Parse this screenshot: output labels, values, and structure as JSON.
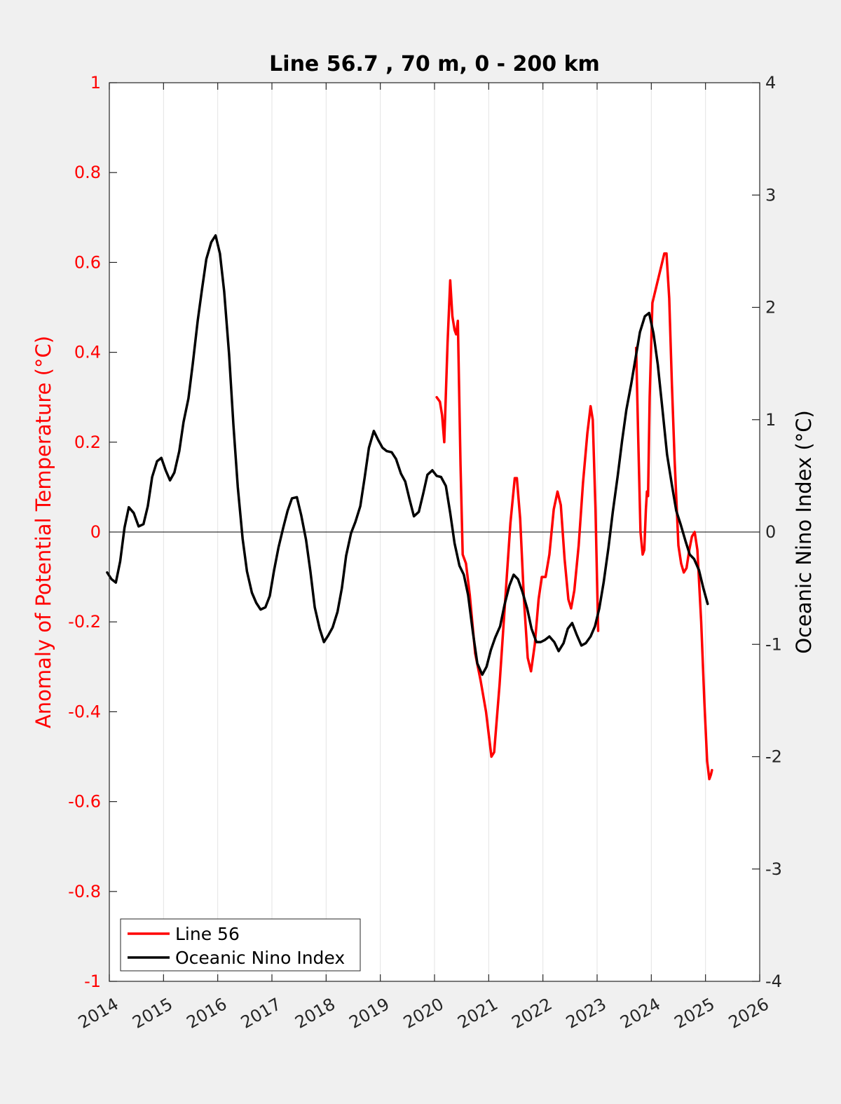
{
  "chart_data": {
    "type": "line",
    "title": "Line 56.7 , 70 m, 0 - 200 km",
    "xlabel": "",
    "ylabel": "Anomaly of Potential Temperature (°C)",
    "ylabel_right": "Oceanic Nino Index (°C)",
    "xlim": [
      2014,
      2026
    ],
    "ylim": [
      -1,
      1
    ],
    "ylim_right": [
      -4,
      4
    ],
    "x_ticks": [
      2014,
      2015,
      2016,
      2017,
      2018,
      2019,
      2020,
      2021,
      2022,
      2023,
      2024,
      2025,
      2026
    ],
    "x_tick_labels": [
      "2014",
      "2015",
      "2016",
      "2017",
      "2018",
      "2019",
      "2020",
      "2021",
      "2022",
      "2023",
      "2024",
      "2025",
      "2026"
    ],
    "y_ticks": [
      -1,
      -0.8,
      -0.6,
      -0.4,
      -0.2,
      0,
      0.2,
      0.4,
      0.6,
      0.8,
      1
    ],
    "y_tick_labels": [
      "-1",
      "-0.8",
      "-0.6",
      "-0.4",
      "-0.2",
      "0",
      "0.2",
      "0.4",
      "0.6",
      "0.8",
      "1"
    ],
    "y_right_ticks": [
      -4,
      -3,
      -2,
      -1,
      0,
      1,
      2,
      3,
      4
    ],
    "y_right_tick_labels": [
      "-4",
      "-3",
      "-2",
      "-1",
      "0",
      "1",
      "2",
      "3",
      "4"
    ],
    "grid": "vertical",
    "zero_line": true,
    "legend_position": "bottom-left",
    "series": [
      {
        "name": "Line 56",
        "color": "#ff0000",
        "axis": "left",
        "segments": [
          [
            [
              2020.04,
              0.3
            ],
            [
              2020.1,
              0.29
            ],
            [
              2020.14,
              0.26
            ],
            [
              2020.18,
              0.2
            ],
            [
              2020.24,
              0.42
            ],
            [
              2020.29,
              0.56
            ],
            [
              2020.33,
              0.48
            ],
            [
              2020.37,
              0.45
            ],
            [
              2020.4,
              0.44
            ],
            [
              2020.43,
              0.47
            ],
            [
              2020.48,
              0.15
            ],
            [
              2020.52,
              -0.05
            ],
            [
              2020.58,
              -0.07
            ],
            [
              2020.65,
              -0.14
            ],
            [
              2020.75,
              -0.27
            ],
            [
              2020.85,
              -0.33
            ],
            [
              2020.95,
              -0.4
            ],
            [
              2021.05,
              -0.5
            ],
            [
              2021.1,
              -0.49
            ],
            [
              2021.2,
              -0.34
            ],
            [
              2021.3,
              -0.16
            ],
            [
              2021.4,
              0.02
            ],
            [
              2021.48,
              0.12
            ],
            [
              2021.52,
              0.12
            ],
            [
              2021.58,
              0.03
            ],
            [
              2021.65,
              -0.15
            ],
            [
              2021.72,
              -0.28
            ],
            [
              2021.78,
              -0.31
            ],
            [
              2021.85,
              -0.25
            ],
            [
              2021.92,
              -0.15
            ],
            [
              2021.98,
              -0.1
            ],
            [
              2022.05,
              -0.1
            ],
            [
              2022.12,
              -0.05
            ],
            [
              2022.2,
              0.05
            ],
            [
              2022.27,
              0.09
            ],
            [
              2022.33,
              0.06
            ],
            [
              2022.4,
              -0.06
            ],
            [
              2022.47,
              -0.15
            ],
            [
              2022.52,
              -0.17
            ],
            [
              2022.58,
              -0.13
            ],
            [
              2022.66,
              -0.03
            ],
            [
              2022.74,
              0.11
            ],
            [
              2022.82,
              0.22
            ],
            [
              2022.88,
              0.28
            ],
            [
              2022.92,
              0.25
            ],
            [
              2022.97,
              0.05
            ],
            [
              2023.02,
              -0.22
            ]
          ],
          [
            [
              2023.72,
              0.41
            ],
            [
              2023.76,
              0.2
            ],
            [
              2023.8,
              0.0
            ],
            [
              2023.84,
              -0.05
            ],
            [
              2023.87,
              -0.04
            ],
            [
              2023.9,
              0.05
            ],
            [
              2023.92,
              0.09
            ],
            [
              2023.94,
              0.08
            ],
            [
              2023.97,
              0.3
            ],
            [
              2024.02,
              0.51
            ],
            [
              2024.1,
              0.55
            ],
            [
              2024.18,
              0.59
            ],
            [
              2024.24,
              0.62
            ],
            [
              2024.28,
              0.62
            ],
            [
              2024.33,
              0.52
            ],
            [
              2024.38,
              0.33
            ],
            [
              2024.43,
              0.16
            ],
            [
              2024.5,
              -0.03
            ],
            [
              2024.55,
              -0.07
            ],
            [
              2024.6,
              -0.09
            ],
            [
              2024.65,
              -0.08
            ],
            [
              2024.7,
              -0.04
            ],
            [
              2024.75,
              -0.01
            ],
            [
              2024.8,
              0.0
            ],
            [
              2024.85,
              -0.04
            ],
            [
              2024.92,
              -0.2
            ],
            [
              2024.98,
              -0.38
            ],
            [
              2025.03,
              -0.51
            ],
            [
              2025.07,
              -0.55
            ],
            [
              2025.1,
              -0.54
            ],
            [
              2025.12,
              -0.53
            ]
          ]
        ]
      },
      {
        "name": "Oceanic Nino Index",
        "color": "#000000",
        "axis": "right",
        "segments": [
          [
            [
              2013.96,
              -0.36
            ],
            [
              2014.04,
              -0.42
            ],
            [
              2014.12,
              -0.45
            ],
            [
              2014.2,
              -0.26
            ],
            [
              2014.28,
              0.04
            ],
            [
              2014.36,
              0.22
            ],
            [
              2014.45,
              0.17
            ],
            [
              2014.54,
              0.05
            ],
            [
              2014.63,
              0.07
            ],
            [
              2014.71,
              0.23
            ],
            [
              2014.79,
              0.49
            ],
            [
              2014.88,
              0.63
            ],
            [
              2014.96,
              0.66
            ],
            [
              2015.04,
              0.55
            ],
            [
              2015.12,
              0.46
            ],
            [
              2015.2,
              0.53
            ],
            [
              2015.29,
              0.72
            ],
            [
              2015.37,
              0.98
            ],
            [
              2015.46,
              1.19
            ],
            [
              2015.54,
              1.5
            ],
            [
              2015.63,
              1.88
            ],
            [
              2015.71,
              2.16
            ],
            [
              2015.79,
              2.43
            ],
            [
              2015.88,
              2.58
            ],
            [
              2015.96,
              2.64
            ],
            [
              2016.04,
              2.48
            ],
            [
              2016.12,
              2.14
            ],
            [
              2016.21,
              1.58
            ],
            [
              2016.29,
              0.95
            ],
            [
              2016.37,
              0.4
            ],
            [
              2016.46,
              -0.06
            ],
            [
              2016.54,
              -0.35
            ],
            [
              2016.63,
              -0.54
            ],
            [
              2016.71,
              -0.63
            ],
            [
              2016.79,
              -0.69
            ],
            [
              2016.88,
              -0.67
            ],
            [
              2016.96,
              -0.57
            ],
            [
              2017.04,
              -0.34
            ],
            [
              2017.12,
              -0.14
            ],
            [
              2017.21,
              0.04
            ],
            [
              2017.29,
              0.19
            ],
            [
              2017.37,
              0.3
            ],
            [
              2017.46,
              0.31
            ],
            [
              2017.54,
              0.15
            ],
            [
              2017.63,
              -0.07
            ],
            [
              2017.71,
              -0.35
            ],
            [
              2017.79,
              -0.67
            ],
            [
              2017.88,
              -0.86
            ],
            [
              2017.96,
              -0.98
            ],
            [
              2018.04,
              -0.92
            ],
            [
              2018.12,
              -0.85
            ],
            [
              2018.21,
              -0.71
            ],
            [
              2018.29,
              -0.5
            ],
            [
              2018.37,
              -0.21
            ],
            [
              2018.46,
              -0.01
            ],
            [
              2018.54,
              0.09
            ],
            [
              2018.63,
              0.23
            ],
            [
              2018.71,
              0.48
            ],
            [
              2018.79,
              0.75
            ],
            [
              2018.88,
              0.9
            ],
            [
              2018.96,
              0.82
            ],
            [
              2019.04,
              0.75
            ],
            [
              2019.12,
              0.72
            ],
            [
              2019.21,
              0.71
            ],
            [
              2019.29,
              0.65
            ],
            [
              2019.38,
              0.52
            ],
            [
              2019.46,
              0.45
            ],
            [
              2019.54,
              0.29
            ],
            [
              2019.62,
              0.14
            ],
            [
              2019.71,
              0.18
            ],
            [
              2019.79,
              0.34
            ],
            [
              2019.87,
              0.51
            ],
            [
              2019.96,
              0.55
            ],
            [
              2020.04,
              0.5
            ],
            [
              2020.12,
              0.49
            ],
            [
              2020.21,
              0.41
            ],
            [
              2020.29,
              0.17
            ],
            [
              2020.37,
              -0.1
            ],
            [
              2020.46,
              -0.3
            ],
            [
              2020.54,
              -0.38
            ],
            [
              2020.62,
              -0.56
            ],
            [
              2020.71,
              -0.9
            ],
            [
              2020.79,
              -1.17
            ],
            [
              2020.88,
              -1.27
            ],
            [
              2020.96,
              -1.2
            ],
            [
              2021.04,
              -1.05
            ],
            [
              2021.12,
              -0.94
            ],
            [
              2021.21,
              -0.84
            ],
            [
              2021.29,
              -0.65
            ],
            [
              2021.38,
              -0.48
            ],
            [
              2021.46,
              -0.38
            ],
            [
              2021.54,
              -0.42
            ],
            [
              2021.62,
              -0.53
            ],
            [
              2021.71,
              -0.68
            ],
            [
              2021.79,
              -0.86
            ],
            [
              2021.88,
              -0.98
            ],
            [
              2021.96,
              -0.98
            ],
            [
              2022.04,
              -0.96
            ],
            [
              2022.12,
              -0.93
            ],
            [
              2022.21,
              -0.98
            ],
            [
              2022.29,
              -1.06
            ],
            [
              2022.38,
              -0.99
            ],
            [
              2022.46,
              -0.86
            ],
            [
              2022.54,
              -0.81
            ],
            [
              2022.62,
              -0.91
            ],
            [
              2022.71,
              -1.01
            ],
            [
              2022.79,
              -0.99
            ],
            [
              2022.88,
              -0.93
            ],
            [
              2022.96,
              -0.84
            ],
            [
              2023.04,
              -0.68
            ],
            [
              2023.12,
              -0.45
            ],
            [
              2023.21,
              -0.14
            ],
            [
              2023.29,
              0.18
            ],
            [
              2023.38,
              0.5
            ],
            [
              2023.46,
              0.81
            ],
            [
              2023.54,
              1.09
            ],
            [
              2023.63,
              1.32
            ],
            [
              2023.71,
              1.55
            ],
            [
              2023.79,
              1.78
            ],
            [
              2023.88,
              1.92
            ],
            [
              2023.96,
              1.95
            ],
            [
              2024.04,
              1.77
            ],
            [
              2024.12,
              1.49
            ],
            [
              2024.21,
              1.07
            ],
            [
              2024.29,
              0.69
            ],
            [
              2024.38,
              0.42
            ],
            [
              2024.46,
              0.19
            ],
            [
              2024.54,
              0.07
            ],
            [
              2024.63,
              -0.08
            ],
            [
              2024.71,
              -0.2
            ],
            [
              2024.79,
              -0.24
            ],
            [
              2024.88,
              -0.34
            ],
            [
              2024.96,
              -0.5
            ],
            [
              2025.04,
              -0.64
            ]
          ]
        ]
      }
    ]
  }
}
